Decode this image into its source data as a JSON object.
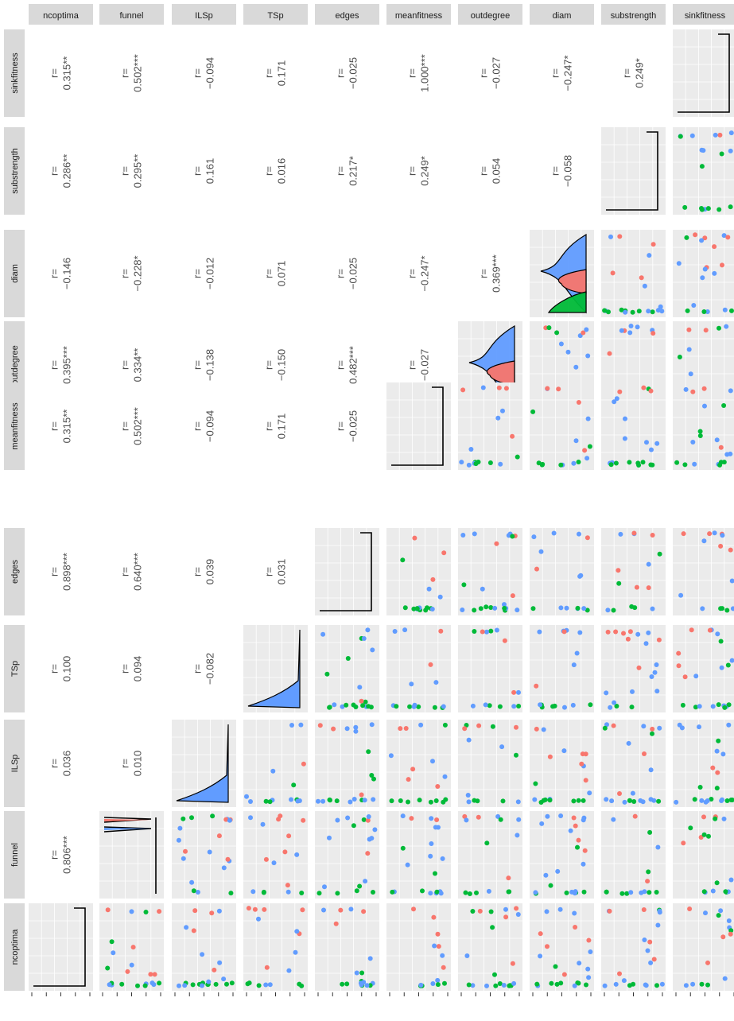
{
  "chart_data": {
    "type": "scatter-matrix",
    "variables": [
      "ncoptima",
      "funnel",
      "ILSp",
      "TSp",
      "edges",
      "meanfitness",
      "outdegree",
      "diam",
      "substrength",
      "sinkfitness"
    ],
    "row_order": [
      "sinkfitness",
      "substrength",
      "diam",
      "outdegree",
      "meanfitness",
      "edges",
      "TSp",
      "ILSp",
      "funnel",
      "ncoptima"
    ],
    "correlation_prefix": "r=",
    "correlations": [
      {
        "row": "sinkfitness",
        "col": "ncoptima",
        "value": "0.315**"
      },
      {
        "row": "sinkfitness",
        "col": "funnel",
        "value": "0.502***"
      },
      {
        "row": "sinkfitness",
        "col": "ILSp",
        "value": "−0.094"
      },
      {
        "row": "sinkfitness",
        "col": "TSp",
        "value": "0.171"
      },
      {
        "row": "sinkfitness",
        "col": "edges",
        "value": "−0.025"
      },
      {
        "row": "sinkfitness",
        "col": "meanfitness",
        "value": "1.000***"
      },
      {
        "row": "sinkfitness",
        "col": "outdegree",
        "value": "−0.027"
      },
      {
        "row": "sinkfitness",
        "col": "diam",
        "value": "−0.247*"
      },
      {
        "row": "sinkfitness",
        "col": "substrength",
        "value": "0.249*"
      },
      {
        "row": "substrength",
        "col": "ncoptima",
        "value": "0.286**"
      },
      {
        "row": "substrength",
        "col": "funnel",
        "value": "0.295**"
      },
      {
        "row": "substrength",
        "col": "ILSp",
        "value": "0.161"
      },
      {
        "row": "substrength",
        "col": "TSp",
        "value": "0.016"
      },
      {
        "row": "substrength",
        "col": "edges",
        "value": "0.217*"
      },
      {
        "row": "substrength",
        "col": "meanfitness",
        "value": "0.249*"
      },
      {
        "row": "substrength",
        "col": "outdegree",
        "value": "0.054"
      },
      {
        "row": "substrength",
        "col": "diam",
        "value": "−0.058"
      },
      {
        "row": "diam",
        "col": "ncoptima",
        "value": "−0.146"
      },
      {
        "row": "diam",
        "col": "funnel",
        "value": "−0.228*"
      },
      {
        "row": "diam",
        "col": "ILSp",
        "value": "−0.012"
      },
      {
        "row": "diam",
        "col": "TSp",
        "value": "0.071"
      },
      {
        "row": "diam",
        "col": "edges",
        "value": "−0.025"
      },
      {
        "row": "diam",
        "col": "meanfitness",
        "value": "−0.247*"
      },
      {
        "row": "diam",
        "col": "outdegree",
        "value": "0.369***"
      },
      {
        "row": "outdegree",
        "col": "ncoptima",
        "value": "0.395***"
      },
      {
        "row": "outdegree",
        "col": "funnel",
        "value": "0.334**"
      },
      {
        "row": "outdegree",
        "col": "ILSp",
        "value": "−0.138"
      },
      {
        "row": "outdegree",
        "col": "TSp",
        "value": "−0.150"
      },
      {
        "row": "outdegree",
        "col": "edges",
        "value": "0.482***"
      },
      {
        "row": "outdegree",
        "col": "meanfitness",
        "value": "−0.027"
      },
      {
        "row": "meanfitness",
        "col": "ncoptima",
        "value": "0.315**"
      },
      {
        "row": "meanfitness",
        "col": "funnel",
        "value": "0.502***"
      },
      {
        "row": "meanfitness",
        "col": "ILSp",
        "value": "−0.094"
      },
      {
        "row": "meanfitness",
        "col": "TSp",
        "value": "0.171"
      },
      {
        "row": "meanfitness",
        "col": "edges",
        "value": "−0.025"
      },
      {
        "row": "edges",
        "col": "ncoptima",
        "value": "0.898***"
      },
      {
        "row": "edges",
        "col": "funnel",
        "value": "0.640***"
      },
      {
        "row": "edges",
        "col": "ILSp",
        "value": "0.039"
      },
      {
        "row": "edges",
        "col": "TSp",
        "value": "0.031"
      },
      {
        "row": "TSp",
        "col": "ncoptima",
        "value": "0.100"
      },
      {
        "row": "TSp",
        "col": "funnel",
        "value": "0.094"
      },
      {
        "row": "TSp",
        "col": "ILSp",
        "value": "−0.082"
      },
      {
        "row": "ILSp",
        "col": "ncoptima",
        "value": "0.036"
      },
      {
        "row": "ILSp",
        "col": "funnel",
        "value": "0.010"
      },
      {
        "row": "funnel",
        "col": "ncoptima",
        "value": "0.806***"
      }
    ],
    "group_colors": {
      "red": "#F8766D",
      "green": "#00BA38",
      "blue": "#619CFF"
    },
    "panel_background": "#EBEBEB",
    "strip_background": "#D9D9D9",
    "grid": true
  }
}
